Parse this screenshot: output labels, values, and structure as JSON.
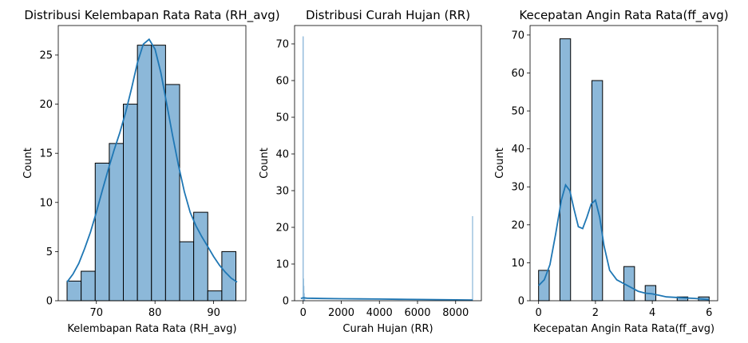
{
  "chart_data": [
    {
      "type": "bar",
      "title": "Distribusi Kelembapan Rata Rata  (RH_avg)",
      "xlabel": "Kelembapan Rata Rata  (RH_avg)",
      "ylabel": "Count",
      "xlim": [
        63.5,
        95.5
      ],
      "ylim": [
        0,
        28
      ],
      "xticks": [
        70,
        80,
        90
      ],
      "yticks": [
        0,
        5,
        10,
        15,
        20,
        25
      ],
      "bins": [
        {
          "x0": 65.0,
          "x1": 67.4,
          "count": 2
        },
        {
          "x0": 67.4,
          "x1": 69.8,
          "count": 3
        },
        {
          "x0": 69.8,
          "x1": 72.2,
          "count": 14
        },
        {
          "x0": 72.2,
          "x1": 74.6,
          "count": 16
        },
        {
          "x0": 74.6,
          "x1": 77.0,
          "count": 20
        },
        {
          "x0": 77.0,
          "x1": 79.4,
          "count": 26
        },
        {
          "x0": 79.4,
          "x1": 81.8,
          "count": 26
        },
        {
          "x0": 81.8,
          "x1": 84.2,
          "count": 22
        },
        {
          "x0": 84.2,
          "x1": 86.6,
          "count": 6
        },
        {
          "x0": 86.6,
          "x1": 89.0,
          "count": 9
        },
        {
          "x0": 89.0,
          "x1": 91.4,
          "count": 1
        },
        {
          "x0": 91.4,
          "x1": 93.8,
          "count": 5
        }
      ],
      "kde": {
        "x": [
          65,
          66,
          67,
          68,
          69,
          70,
          71,
          72,
          73,
          74,
          75,
          76,
          77,
          78,
          79,
          80,
          81,
          82,
          83,
          84,
          85,
          86,
          87,
          88,
          89,
          90,
          91,
          92,
          93,
          94
        ],
        "y": [
          1.9,
          2.7,
          3.8,
          5.3,
          7.0,
          9.0,
          11.2,
          13.3,
          15.3,
          17.1,
          19.2,
          21.6,
          24.2,
          26.1,
          26.6,
          25.6,
          23.2,
          20.0,
          16.8,
          13.8,
          11.1,
          9.0,
          7.6,
          6.5,
          5.5,
          4.5,
          3.6,
          2.9,
          2.3,
          1.9
        ]
      }
    },
    {
      "type": "bar",
      "title": "Distribusi Curah Hujan (RR)",
      "xlabel": "Curah Hujan (RR)",
      "ylabel": "Count",
      "xlim": [
        -450,
        9350
      ],
      "ylim": [
        0,
        75
      ],
      "xticks": [
        0,
        2000,
        4000,
        6000,
        8000
      ],
      "yticks": [
        0,
        10,
        20,
        30,
        40,
        50,
        60,
        70
      ],
      "bins": [
        {
          "x": 0,
          "count": 72
        },
        {
          "x": 18,
          "count": 6
        },
        {
          "x": 36,
          "count": 4
        },
        {
          "x": 55,
          "count": 2
        },
        {
          "x": 75,
          "count": 1
        },
        {
          "x": 8888,
          "count": 23
        }
      ],
      "kde": {
        "x": [
          -120,
          0,
          200,
          1000,
          2000,
          3000,
          4000,
          5000,
          6000,
          7000,
          8000,
          8888
        ],
        "y": [
          0.6,
          0.8,
          0.7,
          0.6,
          0.55,
          0.5,
          0.45,
          0.4,
          0.35,
          0.3,
          0.25,
          0.2
        ]
      }
    },
    {
      "type": "bar",
      "title": "Kecepatan Angin Rata Rata(ff_avg)",
      "xlabel": "Kecepatan Angin Rata Rata(ff_avg)",
      "ylabel": "Count",
      "xlim": [
        -0.3,
        6.3
      ],
      "ylim": [
        0,
        72.5
      ],
      "xticks": [
        0,
        2,
        4,
        6
      ],
      "yticks": [
        0,
        10,
        20,
        30,
        40,
        50,
        60,
        70
      ],
      "bins": [
        {
          "x0": 0.0,
          "x1": 0.375,
          "count": 8
        },
        {
          "x0": 0.75,
          "x1": 1.125,
          "count": 69
        },
        {
          "x0": 1.875,
          "x1": 2.25,
          "count": 58
        },
        {
          "x0": 3.0,
          "x1": 3.375,
          "count": 9
        },
        {
          "x0": 3.75,
          "x1": 4.125,
          "count": 4
        },
        {
          "x0": 4.875,
          "x1": 5.25,
          "count": 1
        },
        {
          "x0": 5.625,
          "x1": 6.0,
          "count": 1
        }
      ],
      "kde": {
        "x": [
          0,
          0.2,
          0.4,
          0.6,
          0.8,
          0.95,
          1.1,
          1.25,
          1.4,
          1.55,
          1.7,
          1.85,
          2.0,
          2.15,
          2.3,
          2.5,
          2.75,
          3.0,
          3.25,
          3.5,
          3.75,
          4.0,
          4.25,
          4.5,
          5.0,
          5.5,
          6.0
        ],
        "y": [
          4.0,
          5.5,
          9.5,
          17.5,
          26.5,
          30.5,
          29.0,
          24.0,
          19.5,
          19.0,
          22.0,
          25.5,
          26.5,
          22.0,
          14.5,
          8.0,
          5.5,
          4.5,
          3.5,
          2.5,
          2.0,
          1.8,
          1.4,
          1.0,
          0.8,
          0.6,
          0.3
        ]
      }
    }
  ]
}
